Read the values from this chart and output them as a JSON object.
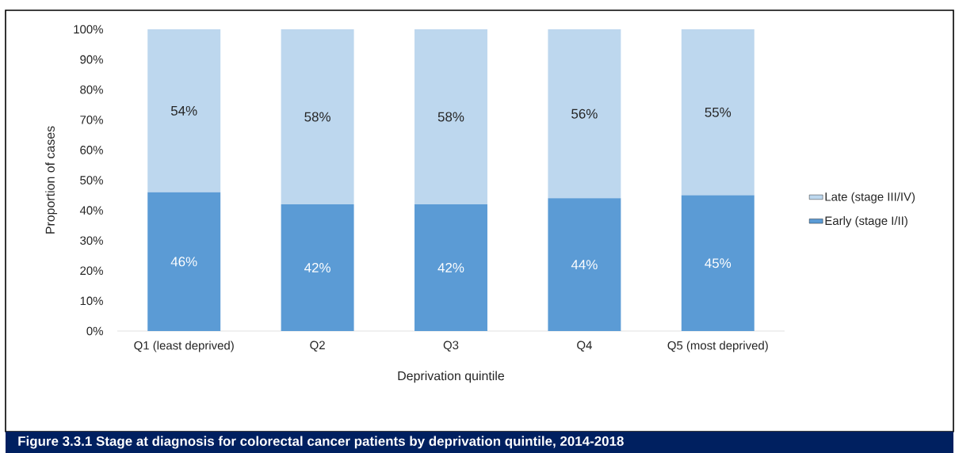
{
  "chart_data": {
    "type": "bar",
    "title": "Figure 3.3.1 Stage at diagnosis for colorectal cancer patients by deprivation quintile, 2014-2018",
    "xlabel": "Deprivation quintile",
    "ylabel": "Proportion of cases",
    "categories": [
      "Q1 (least deprived)",
      "Q2",
      "Q3",
      "Q4",
      "Q5 (most deprived)"
    ],
    "series": [
      {
        "name": "Early (stage I/II)",
        "color": "#5b9bd5",
        "values": [
          46,
          42,
          42,
          44,
          45
        ],
        "value_labels": [
          "46%",
          "42%",
          "42%",
          "44%",
          "45%"
        ]
      },
      {
        "name": "Late (stage III/IV)",
        "color": "#bdd7ee",
        "values": [
          54,
          58,
          58,
          56,
          55
        ],
        "value_labels": [
          "54%",
          "58%",
          "58%",
          "56%",
          "55%"
        ]
      }
    ],
    "stacked": true,
    "ylim": [
      0,
      100
    ],
    "yticks": [
      {
        "value": 0,
        "label": "0%"
      },
      {
        "value": 10,
        "label": "10%"
      },
      {
        "value": 20,
        "label": "20%"
      },
      {
        "value": 30,
        "label": "30%"
      },
      {
        "value": 40,
        "label": "40%"
      },
      {
        "value": 50,
        "label": "50%"
      },
      {
        "value": 60,
        "label": "60%"
      },
      {
        "value": 70,
        "label": "70%"
      },
      {
        "value": 80,
        "label": "80%"
      },
      {
        "value": 90,
        "label": "90%"
      },
      {
        "value": 100,
        "label": "100%"
      }
    ],
    "legend": "right"
  }
}
